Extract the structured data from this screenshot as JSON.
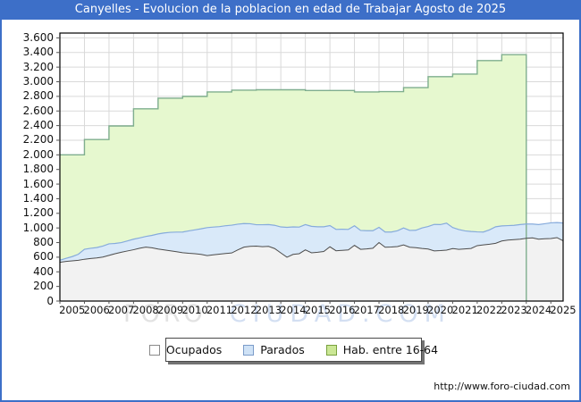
{
  "title": "Canyelles - Evolucion de la poblacion en edad de Trabajar Agosto de 2025",
  "watermark": {
    "part1": "FORO",
    "part2": "CIUDAD.COM"
  },
  "footer": {
    "url": "http://www.foro-ciudad.com"
  },
  "legend": {
    "items": [
      {
        "label": "Ocupados",
        "swatch_fill": "#ffffff",
        "swatch_border": "#8a8a8a"
      },
      {
        "label": "Parados",
        "swatch_fill": "#cfe2f6",
        "swatch_border": "#7b9cc9"
      },
      {
        "label": "Hab. entre 16-64",
        "swatch_fill": "#cbe795",
        "swatch_border": "#79a13f"
      }
    ]
  },
  "colors": {
    "frame_blue": "#3d6fc8",
    "plot_border": "#000000",
    "grid": "#d9d9d9",
    "ocupados_fill": "#f2f2f2",
    "ocupados_line": "#4d4d4d",
    "parados_fill": "#d9e9f9",
    "parados_line": "#86abdc",
    "hab_fill": "#e6f8cf",
    "hab_line": "#7fae8e",
    "watermark_gray": "#e2e2e2",
    "watermark_blue": "#d3dff2"
  },
  "chart_data": {
    "type": "area",
    "title": "Canyelles - Evolucion de la poblacion en edad de Trabajar Agosto de 2025",
    "grid": true,
    "legend_position": "bottom",
    "x_axis": {
      "years": [
        "2005",
        "2006",
        "2007",
        "2008",
        "2009",
        "2010",
        "2011",
        "2012",
        "2013",
        "2014",
        "2015",
        "2016",
        "2017",
        "2018",
        "2019",
        "2020",
        "2021",
        "2022",
        "2023",
        "2024",
        "2025"
      ],
      "range": [
        2005,
        2025.5
      ]
    },
    "y_axis": {
      "min": 0,
      "max": 3666,
      "tick_step": 200,
      "tick_labels": [
        "0",
        "200",
        "400",
        "600",
        "800",
        "1.000",
        "1.200",
        "1.400",
        "1.600",
        "1.800",
        "2.000",
        "2.200",
        "2.400",
        "2.600",
        "2.800",
        "3.000",
        "3.200",
        "3.400",
        "3.600"
      ]
    },
    "series": [
      {
        "name": "Ocupados",
        "type": "area",
        "stack": "base",
        "x_start": 2005.0,
        "x_step": 0.25,
        "values": [
          530,
          542,
          550,
          558,
          572,
          582,
          590,
          602,
          625,
          648,
          668,
          685,
          702,
          722,
          738,
          728,
          712,
          700,
          688,
          675,
          662,
          654,
          648,
          638,
          622,
          632,
          642,
          650,
          658,
          700,
          738,
          748,
          752,
          744,
          748,
          718,
          658,
          600,
          638,
          648,
          700,
          660,
          668,
          678,
          742,
          688,
          694,
          700,
          762,
          708,
          714,
          722,
          800,
          736,
          740,
          746,
          768,
          736,
          730,
          720,
          712,
          686,
          690,
          696,
          718,
          708,
          714,
          720,
          758,
          768,
          778,
          790,
          822,
          834,
          840,
          846,
          858,
          864,
          846,
          852,
          856,
          868,
          824
        ]
      },
      {
        "name": "Parados",
        "type": "area",
        "stack": "on_ocupados",
        "x_start": 2005.0,
        "x_step": 0.25,
        "values": [
          28,
          42,
          58,
          82,
          136,
          140,
          142,
          150,
          158,
          140,
          132,
          138,
          144,
          142,
          146,
          170,
          206,
          232,
          252,
          268,
          282,
          306,
          326,
          350,
          382,
          380,
          376,
          380,
          380,
          352,
          322,
          310,
          292,
          300,
          298,
          318,
          356,
          408,
          376,
          364,
          346,
          362,
          348,
          338,
          290,
          292,
          288,
          280,
          268,
          258,
          248,
          240,
          208,
          208,
          204,
          216,
          232,
          230,
          238,
          280,
          308,
          362,
          356,
          370,
          288,
          270,
          246,
          232,
          188,
          176,
          196,
          226,
          206,
          198,
          196,
          200,
          196,
          190,
          200,
          206,
          214,
          206,
          244
        ]
      },
      {
        "name": "Hab. entre 16-64",
        "type": "step-area",
        "years": [
          2005,
          2006,
          2007,
          2008,
          2009,
          2010,
          2011,
          2012,
          2013,
          2014,
          2015,
          2016,
          2017,
          2018,
          2019,
          2020,
          2021,
          2022,
          2023
        ],
        "values": [
          2000,
          2210,
          2395,
          2630,
          2775,
          2800,
          2860,
          2885,
          2890,
          2890,
          2880,
          2880,
          2860,
          2865,
          2920,
          3070,
          3105,
          3290,
          3370
        ],
        "ends_at": 2024.0
      }
    ]
  }
}
